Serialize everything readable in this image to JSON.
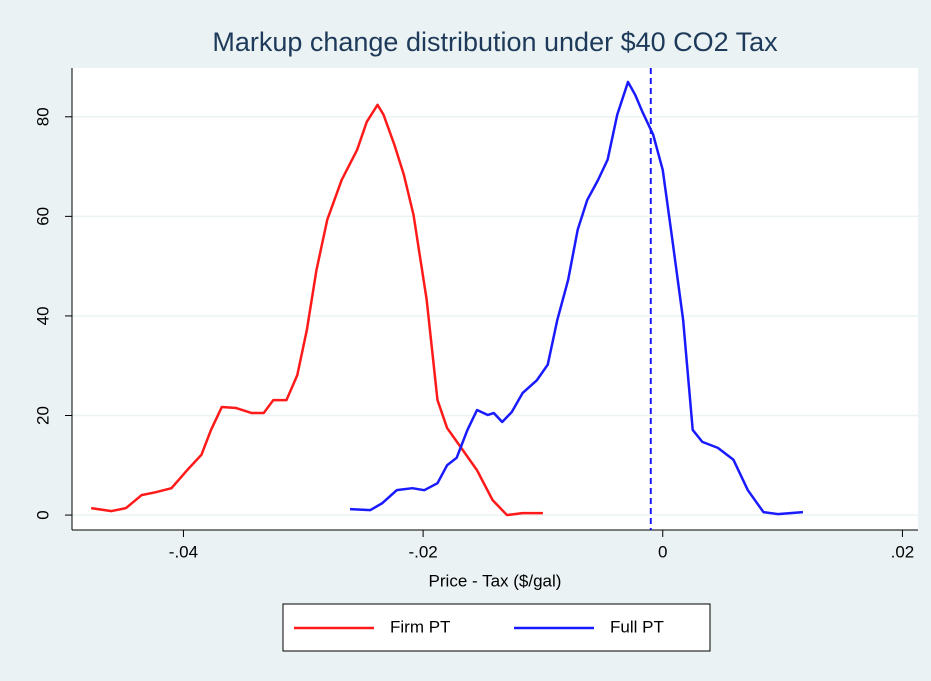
{
  "chart_data": {
    "type": "line",
    "title": "Markup change distribution under $40 CO2 Tax",
    "xlabel": "Price - Tax ($/gal)",
    "xlim": [
      -0.0493,
      0.0213
    ],
    "ylim": [
      -3,
      89.8
    ],
    "xticks": [
      {
        "value": -0.04,
        "label": "-.04"
      },
      {
        "value": -0.02,
        "label": "-.02"
      },
      0,
      {
        "value": 0.02,
        "label": ".02"
      }
    ],
    "yticks": [
      0,
      20,
      40,
      60,
      80
    ],
    "grid": true,
    "reference_line": {
      "x": -0.001,
      "color": "#1a1aff",
      "style": "dashed"
    },
    "series": [
      {
        "name": "Firm PT",
        "color": "#ff1a1a",
        "x": [
          -0.0477,
          -0.046,
          -0.0448,
          -0.0435,
          -0.0423,
          -0.041,
          -0.0397,
          -0.0385,
          -0.0377,
          -0.0368,
          -0.0356,
          -0.0343,
          -0.0333,
          -0.0325,
          -0.0314,
          -0.0305,
          -0.0297,
          -0.0289,
          -0.028,
          -0.0268,
          -0.0255,
          -0.0247,
          -0.0238,
          -0.0233,
          -0.0224,
          -0.0216,
          -0.0208,
          -0.0197,
          -0.0188,
          -0.018,
          -0.0167,
          -0.0155,
          -0.0142,
          -0.013,
          -0.0117,
          -0.01
        ],
        "values": [
          1.4,
          0.8,
          1.4,
          4.0,
          4.6,
          5.4,
          9.0,
          12.1,
          17.1,
          21.7,
          21.5,
          20.5,
          20.5,
          23.1,
          23.1,
          28.1,
          37.2,
          49.2,
          59.3,
          67.3,
          73.4,
          79.0,
          82.4,
          80.4,
          74.4,
          68.3,
          60.3,
          43.2,
          23.1,
          17.5,
          13.1,
          9.0,
          3.0,
          0.0,
          0.4,
          0.4
        ]
      },
      {
        "name": "Full PT",
        "color": "#1a1aff",
        "x": [
          -0.0261,
          -0.0244,
          -0.0234,
          -0.0222,
          -0.0209,
          -0.0199,
          -0.0188,
          -0.018,
          -0.0172,
          -0.0163,
          -0.0155,
          -0.0146,
          -0.0141,
          -0.0134,
          -0.0126,
          -0.0117,
          -0.0105,
          -0.0096,
          -0.0088,
          -0.0079,
          -0.0071,
          -0.0063,
          -0.0054,
          -0.0046,
          -0.0038,
          -0.0029,
          -0.0023,
          -0.0017,
          -0.0008,
          0.0,
          0.0008,
          0.0017,
          0.0025,
          0.0033,
          0.0046,
          0.0059,
          0.0071,
          0.0084,
          0.0096,
          0.0117
        ],
        "values": [
          1.2,
          1.0,
          2.4,
          5.0,
          5.4,
          5.0,
          6.4,
          10.0,
          11.5,
          17.1,
          21.1,
          20.1,
          20.5,
          18.7,
          20.7,
          24.5,
          27.1,
          30.2,
          39.2,
          47.2,
          57.3,
          63.3,
          67.3,
          71.4,
          80.4,
          87.0,
          84.4,
          81.0,
          76.4,
          69.3,
          55.3,
          39.2,
          17.1,
          14.7,
          13.5,
          11.1,
          5.0,
          0.6,
          0.2,
          0.6
        ]
      }
    ]
  }
}
